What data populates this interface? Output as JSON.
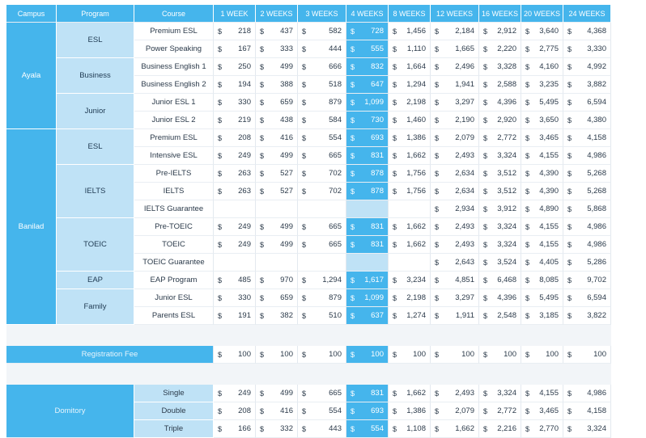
{
  "headers": [
    "Campus",
    "Program",
    "Course",
    "1 WEEK",
    "2 WEEKS",
    "3 WEEKS",
    "4 WEEKS",
    "8 WEEKS",
    "12 WEEKS",
    "16 WEEKS",
    "20 WEEKS",
    "24 WEEKS"
  ],
  "campuses": {
    "ayala": "Ayala",
    "banilad": "Banilad"
  },
  "programs": {
    "esl_ayala": "ESL",
    "business": "Business",
    "junior": "Junior",
    "esl_banilad": "ESL",
    "ielts": "IELTS",
    "toeic": "TOEIC",
    "eap": "EAP",
    "family": "Family"
  },
  "currency": "$",
  "rows": [
    {
      "course": "Premium ESL",
      "prices": [
        "218",
        "437",
        "582",
        "728",
        "1,456",
        "2,184",
        "2,912",
        "3,640",
        "4,368"
      ]
    },
    {
      "course": "Power Speaking",
      "prices": [
        "167",
        "333",
        "444",
        "555",
        "1,110",
        "1,665",
        "2,220",
        "2,775",
        "3,330"
      ]
    },
    {
      "course": "Business English 1",
      "prices": [
        "250",
        "499",
        "666",
        "832",
        "1,664",
        "2,496",
        "3,328",
        "4,160",
        "4,992"
      ]
    },
    {
      "course": "Business English 2",
      "prices": [
        "194",
        "388",
        "518",
        "647",
        "1,294",
        "1,941",
        "2,588",
        "3,235",
        "3,882"
      ]
    },
    {
      "course": "Junior ESL 1",
      "prices": [
        "330",
        "659",
        "879",
        "1,099",
        "2,198",
        "3,297",
        "4,396",
        "5,495",
        "6,594"
      ]
    },
    {
      "course": "Junior ESL 2",
      "prices": [
        "219",
        "438",
        "584",
        "730",
        "1,460",
        "2,190",
        "2,920",
        "3,650",
        "4,380"
      ]
    },
    {
      "course": "Premium ESL",
      "prices": [
        "208",
        "416",
        "554",
        "693",
        "1,386",
        "2,079",
        "2,772",
        "3,465",
        "4,158"
      ]
    },
    {
      "course": "Intensive ESL",
      "prices": [
        "249",
        "499",
        "665",
        "831",
        "1,662",
        "2,493",
        "3,324",
        "4,155",
        "4,986"
      ]
    },
    {
      "course": "Pre-IELTS",
      "prices": [
        "263",
        "527",
        "702",
        "878",
        "1,756",
        "2,634",
        "3,512",
        "4,390",
        "5,268"
      ]
    },
    {
      "course": "IELTS",
      "prices": [
        "263",
        "527",
        "702",
        "878",
        "1,756",
        "2,634",
        "3,512",
        "4,390",
        "5,268"
      ]
    },
    {
      "course": "IELTS Guarantee",
      "prices": [
        "",
        "",
        "",
        "",
        "",
        "2,934",
        "3,912",
        "4,890",
        "5,868"
      ]
    },
    {
      "course": "Pre-TOEIC",
      "prices": [
        "249",
        "499",
        "665",
        "831",
        "1,662",
        "2,493",
        "3,324",
        "4,155",
        "4,986"
      ]
    },
    {
      "course": "TOEIC",
      "prices": [
        "249",
        "499",
        "665",
        "831",
        "1,662",
        "2,493",
        "3,324",
        "4,155",
        "4,986"
      ]
    },
    {
      "course": "TOEIC Guarantee",
      "prices": [
        "",
        "",
        "",
        "",
        "",
        "2,643",
        "3,524",
        "4,405",
        "5,286"
      ]
    },
    {
      "course": "EAP Program",
      "prices": [
        "485",
        "970",
        "1,294",
        "1,617",
        "3,234",
        "4,851",
        "6,468",
        "8,085",
        "9,702"
      ]
    },
    {
      "course": "Junior ESL",
      "prices": [
        "330",
        "659",
        "879",
        "1,099",
        "2,198",
        "3,297",
        "4,396",
        "5,495",
        "6,594"
      ]
    },
    {
      "course": "Parents ESL",
      "prices": [
        "191",
        "382",
        "510",
        "637",
        "1,274",
        "1,911",
        "2,548",
        "3,185",
        "3,822"
      ]
    }
  ],
  "registration": {
    "label": "Registration Fee",
    "prices": [
      "100",
      "100",
      "100",
      "100",
      "100",
      "100",
      "100",
      "100",
      "100"
    ]
  },
  "dormitory": {
    "label": "Domitory",
    "rooms": [
      {
        "room": "Single",
        "prices": [
          "249",
          "499",
          "665",
          "831",
          "1,662",
          "2,493",
          "3,324",
          "4,155",
          "4,986"
        ]
      },
      {
        "room": "Double",
        "prices": [
          "208",
          "416",
          "554",
          "693",
          "1,386",
          "2,079",
          "2,772",
          "3,465",
          "4,158"
        ]
      },
      {
        "room": "Triple",
        "prices": [
          "166",
          "332",
          "443",
          "554",
          "1,108",
          "1,662",
          "2,216",
          "2,770",
          "3,324"
        ]
      }
    ]
  },
  "colors": {
    "header": "#45b5ec",
    "program": "#bfe2f6",
    "highlight": "#45b5ec"
  }
}
